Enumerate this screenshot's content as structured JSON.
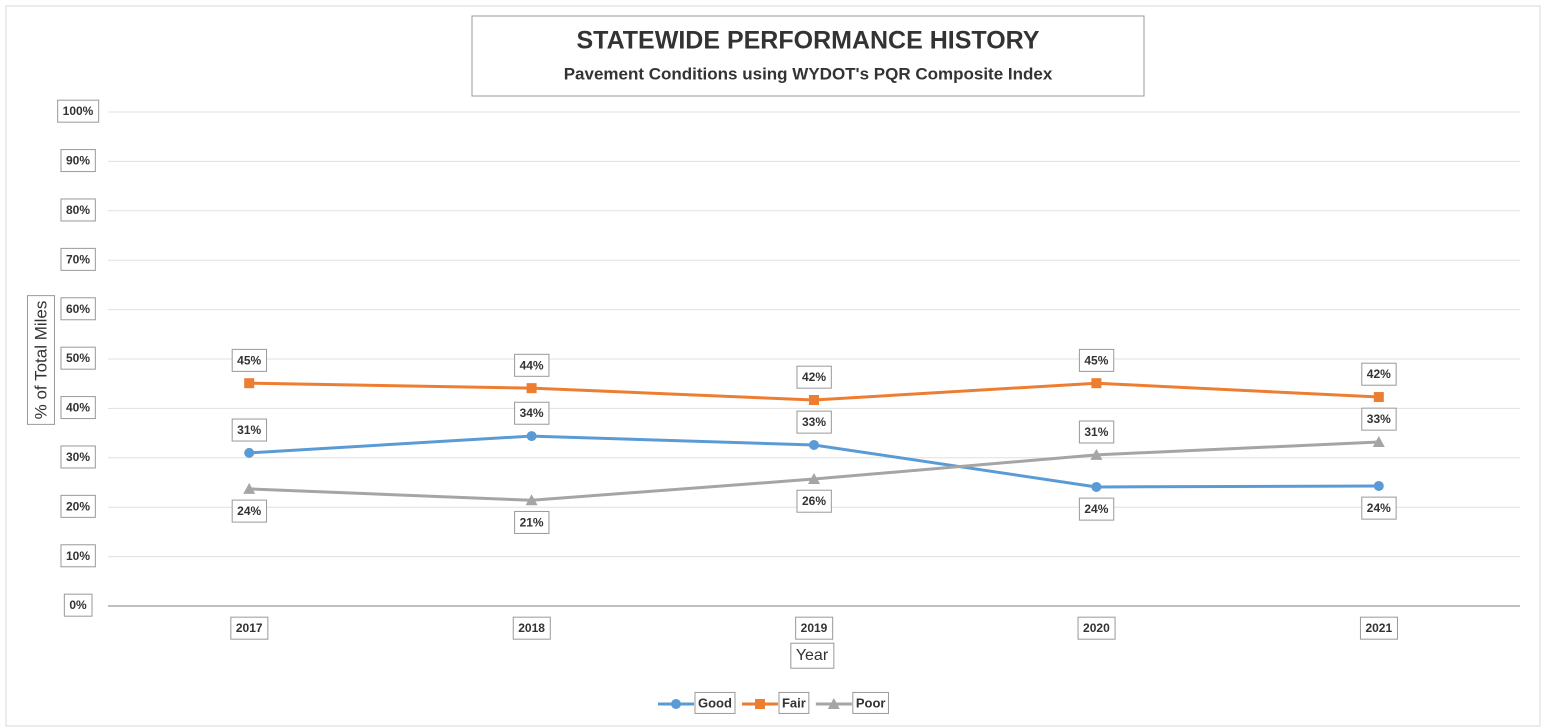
{
  "chart_data": {
    "type": "line",
    "title": "STATEWIDE PERFORMANCE HISTORY",
    "subtitle": "Pavement Conditions using WYDOT's PQR Composite Index",
    "x_label": "Year",
    "y_label": "% of Total Miles",
    "categories": [
      "2017",
      "2018",
      "2019",
      "2020",
      "2021"
    ],
    "series": [
      {
        "name": "Good",
        "color": "#5b9bd5",
        "marker": "circle",
        "values": [
          31.0,
          34.4,
          32.6,
          24.1,
          24.3
        ],
        "value_labels": [
          "31%",
          "34%",
          "33%",
          "24%",
          "24%"
        ]
      },
      {
        "name": "Fair",
        "color": "#ed7d31",
        "marker": "square",
        "values": [
          45.1,
          44.1,
          41.7,
          45.1,
          42.3
        ],
        "value_labels": [
          "45%",
          "44%",
          "42%",
          "45%",
          "42%"
        ]
      },
      {
        "name": "Poor",
        "color": "#a5a5a5",
        "marker": "triangle",
        "values": [
          23.7,
          21.4,
          25.7,
          30.6,
          33.2
        ],
        "value_labels": [
          "24%",
          "21%",
          "26%",
          "31%",
          "33%"
        ]
      }
    ],
    "ylim": [
      0,
      100
    ],
    "yticks": [
      {
        "value": 0,
        "label": "0%"
      },
      {
        "value": 10,
        "label": "10%"
      },
      {
        "value": 20,
        "label": "20%"
      },
      {
        "value": 30,
        "label": "30%"
      },
      {
        "value": 40,
        "label": "40%"
      },
      {
        "value": 50,
        "label": "50%"
      },
      {
        "value": 60,
        "label": "60%"
      },
      {
        "value": 70,
        "label": "70%"
      },
      {
        "value": 80,
        "label": "80%"
      },
      {
        "value": 90,
        "label": "90%"
      },
      {
        "value": 100,
        "label": "100%"
      }
    ],
    "grid": true,
    "legend": "bottom"
  }
}
